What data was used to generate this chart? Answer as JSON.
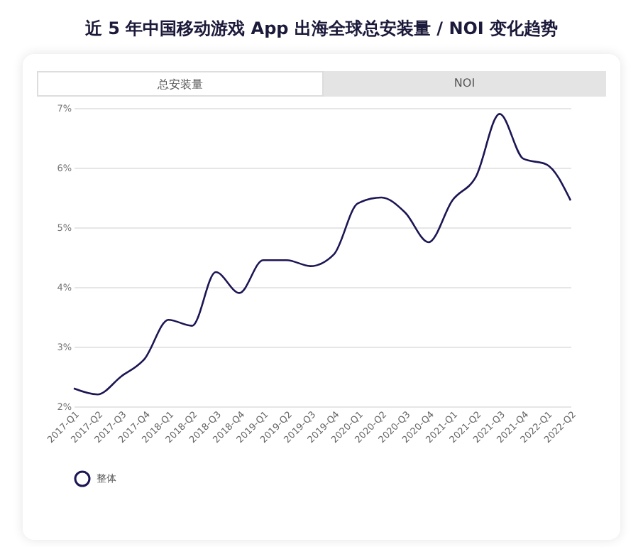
{
  "chart_data": {
    "type": "line",
    "title": "近 5 年中国移动游戏 App 出海全球总安装量 / NOI 变化趋势",
    "annotations": [
      "总安装量",
      "NOI"
    ],
    "categories": [
      "2017-Q1",
      "2017-Q2",
      "2017-Q3",
      "2017-Q4",
      "2018-Q1",
      "2018-Q2",
      "2018-Q3",
      "2018-Q4",
      "2019-Q1",
      "2019-Q2",
      "2019-Q3",
      "2019-Q4",
      "2020-Q1",
      "2020-Q2",
      "2020-Q3",
      "2020-Q4",
      "2021-Q1",
      "2021-Q2",
      "2021-Q3",
      "2021-Q4",
      "2022-Q1",
      "2022-Q2"
    ],
    "series": [
      {
        "name": "整体",
        "color": "#1c1654",
        "values": [
          2.3,
          2.2,
          2.5,
          2.8,
          3.45,
          3.35,
          4.25,
          3.9,
          4.45,
          4.45,
          4.35,
          4.55,
          5.4,
          5.5,
          5.25,
          4.75,
          5.45,
          5.85,
          6.9,
          6.15,
          6.05,
          5.45
        ]
      }
    ],
    "ylim": [
      2,
      7
    ],
    "yticks": [
      {
        "value": 2,
        "label": "2%"
      },
      {
        "value": 3,
        "label": "3%"
      },
      {
        "value": 4,
        "label": "4%"
      },
      {
        "value": 5,
        "label": "5%"
      },
      {
        "value": 6,
        "label": "6%"
      },
      {
        "value": 7,
        "label": "7%"
      }
    ],
    "grid": "y",
    "legend": "bottom",
    "marker": "none",
    "line_style": "solid"
  }
}
